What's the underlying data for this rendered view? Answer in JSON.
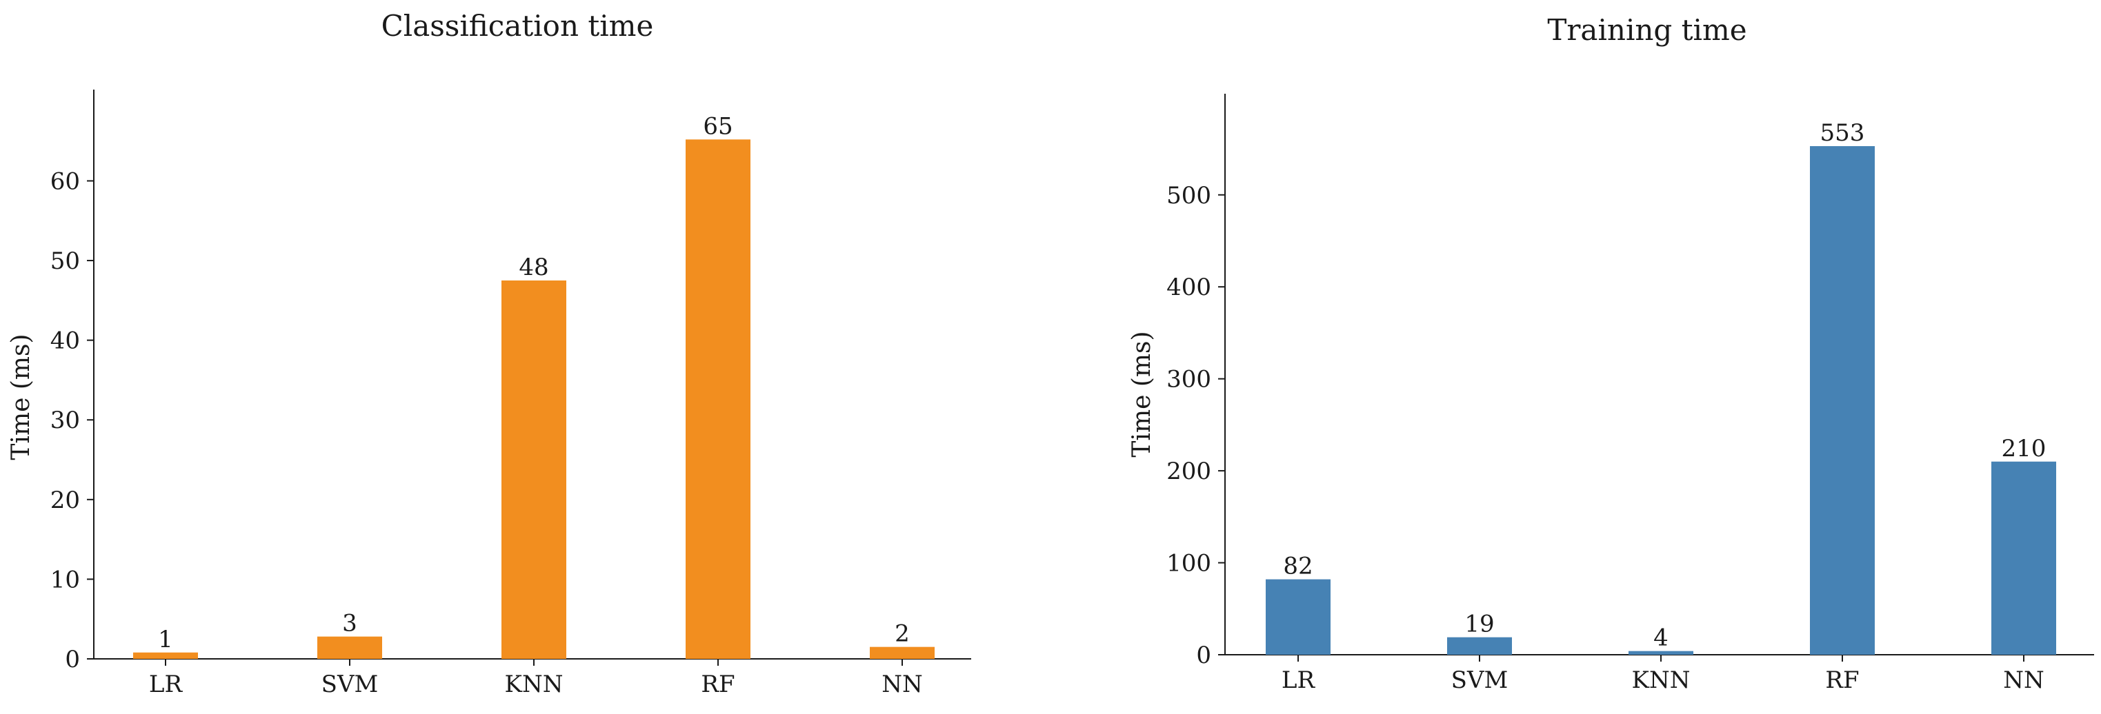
{
  "chart_data": [
    {
      "type": "bar",
      "title": "Classification time",
      "xlabel": "",
      "ylabel": "Time (ms)",
      "categories": [
        "LR",
        "SVM",
        "KNN",
        "RF",
        "NN"
      ],
      "values": [
        0.8,
        2.8,
        47.5,
        65.2,
        1.5
      ],
      "data_labels": [
        "1",
        "3",
        "48",
        "65",
        "2"
      ],
      "ylim": [
        0,
        68
      ],
      "yticks": [
        0,
        10,
        20,
        30,
        40,
        50,
        60
      ],
      "color": "#f28e1f",
      "grid": false
    },
    {
      "type": "bar",
      "title": "Training time",
      "xlabel": "",
      "ylabel": "Time (ms)",
      "categories": [
        "LR",
        "SVM",
        "KNN",
        "RF",
        "NN"
      ],
      "values": [
        82,
        19,
        4,
        553,
        210
      ],
      "data_labels": [
        "82",
        "19",
        "4",
        "553",
        "210"
      ],
      "ylim": [
        0,
        580
      ],
      "yticks": [
        0,
        100,
        200,
        300,
        400,
        500
      ],
      "color": "#4682b4",
      "grid": false
    }
  ]
}
